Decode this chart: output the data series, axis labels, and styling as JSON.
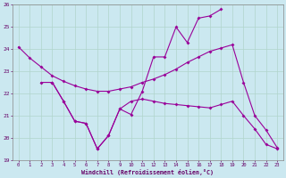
{
  "xlabel": "Windchill (Refroidissement éolien,°C)",
  "line_color": "#990099",
  "bg_color": "#cbe8f0",
  "grid_color": "#b0d4cc",
  "x_values": [
    0,
    1,
    2,
    3,
    4,
    5,
    6,
    7,
    8,
    9,
    10,
    11,
    12,
    13,
    14,
    15,
    16,
    17,
    18,
    19,
    20,
    21,
    22,
    23
  ],
  "ylim": [
    19,
    26
  ],
  "xlim": [
    -0.5,
    23.5
  ],
  "yticks": [
    19,
    20,
    21,
    22,
    23,
    24,
    25,
    26
  ],
  "line1_x": [
    0,
    1,
    2,
    3,
    4,
    5,
    6,
    7,
    8,
    9,
    10,
    11,
    12,
    13,
    14,
    15,
    16,
    17,
    18,
    19,
    20,
    21,
    22,
    23
  ],
  "line1_y": [
    24.1,
    23.6,
    23.2,
    22.8,
    22.55,
    22.35,
    22.2,
    22.1,
    22.1,
    22.2,
    22.3,
    22.5,
    22.65,
    22.85,
    23.1,
    23.4,
    23.65,
    23.9,
    24.05,
    24.2,
    22.5,
    21.0,
    20.35,
    19.55
  ],
  "line2_x": [
    2,
    3,
    4,
    5,
    6,
    7,
    8,
    9,
    10,
    11,
    12,
    13,
    14,
    15,
    16,
    17,
    18
  ],
  "line2_y": [
    22.5,
    22.5,
    21.65,
    20.75,
    20.65,
    19.5,
    20.1,
    21.3,
    21.05,
    22.1,
    23.65,
    23.65,
    25.0,
    24.3,
    25.4,
    25.5,
    25.8
  ],
  "line3_x": [
    3,
    4,
    5,
    6,
    7,
    8,
    9,
    10,
    11,
    12,
    13,
    14,
    15,
    16,
    17,
    18,
    19,
    20,
    21,
    22,
    23
  ],
  "line3_y": [
    22.5,
    21.65,
    20.75,
    20.65,
    19.5,
    20.1,
    21.3,
    21.65,
    21.75,
    21.65,
    21.55,
    21.5,
    21.45,
    21.4,
    21.35,
    21.5,
    21.65,
    21.0,
    20.4,
    19.7,
    19.5
  ]
}
